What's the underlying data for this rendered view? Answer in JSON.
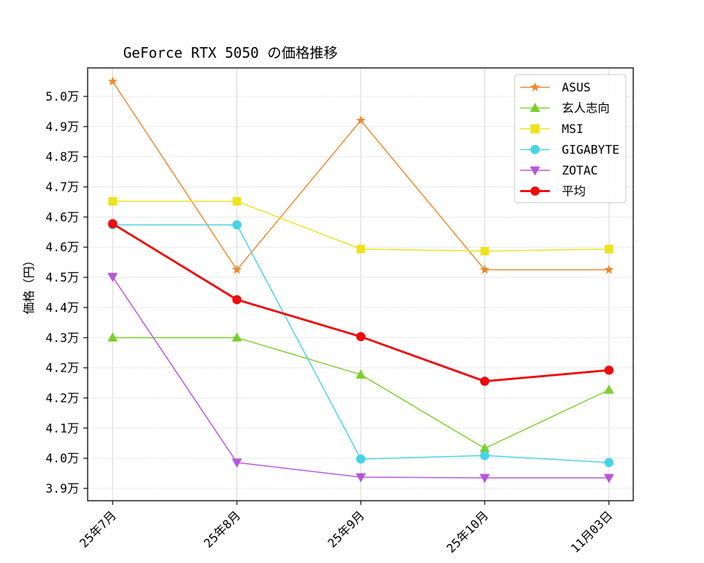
{
  "chart_data": {
    "type": "line",
    "title": "GeForce RTX 5050 の価格推移",
    "xlabel": "",
    "ylabel": "価格（円）",
    "categories": [
      "25年7月",
      "25年8月",
      "25年9月",
      "25年10月",
      "11月03日"
    ],
    "yticks": [
      {
        "value": 50000,
        "label": "5.0万"
      },
      {
        "value": 49150,
        "label": "4.9万"
      },
      {
        "value": 48300,
        "label": "4.8万"
      },
      {
        "value": 47450,
        "label": "4.7万"
      },
      {
        "value": 46600,
        "label": "4.6万"
      },
      {
        "value": 45750,
        "label": "4.6万"
      },
      {
        "value": 44900,
        "label": "4.5万"
      },
      {
        "value": 44050,
        "label": "4.4万"
      },
      {
        "value": 43200,
        "label": "4.3万"
      },
      {
        "value": 42350,
        "label": "4.2万"
      },
      {
        "value": 41500,
        "label": "4.2万"
      },
      {
        "value": 40650,
        "label": "4.1万"
      },
      {
        "value": 39800,
        "label": "4.0万"
      },
      {
        "value": 38950,
        "label": "3.9万"
      }
    ],
    "ylim": [
      38600,
      51900
    ],
    "grid": true,
    "legend_position": "upper right",
    "series": [
      {
        "name": "ASUS",
        "color": "#f0862a",
        "marker": "star",
        "linewidth": 1.5,
        "values": [
          50422,
          45112,
          49322,
          45112,
          45112
        ]
      },
      {
        "name": "玄人志向",
        "color": "#7ccf2a",
        "marker": "triangle-up",
        "linewidth": 1.5,
        "values": [
          43200,
          43200,
          42158,
          40078,
          41728
        ]
      },
      {
        "name": "MSI",
        "color": "#ede21c",
        "marker": "square",
        "linewidth": 1.5,
        "values": [
          47043,
          47043,
          45697,
          45638,
          45697
        ]
      },
      {
        "name": "GIGABYTE",
        "color": "#46d4e4",
        "marker": "circle",
        "linewidth": 1.5,
        "values": [
          46380,
          46380,
          39778,
          39876,
          39680
        ]
      },
      {
        "name": "ZOTAC",
        "color": "#b655de",
        "marker": "triangle-down",
        "linewidth": 1.5,
        "values": [
          44916,
          39680,
          39268,
          39248,
          39248
        ]
      },
      {
        "name": "平均",
        "color": "#ee0b0b",
        "marker": "circle",
        "linewidth": 3,
        "values": [
          46412,
          44270,
          43228,
          41970,
          42283
        ]
      }
    ]
  }
}
